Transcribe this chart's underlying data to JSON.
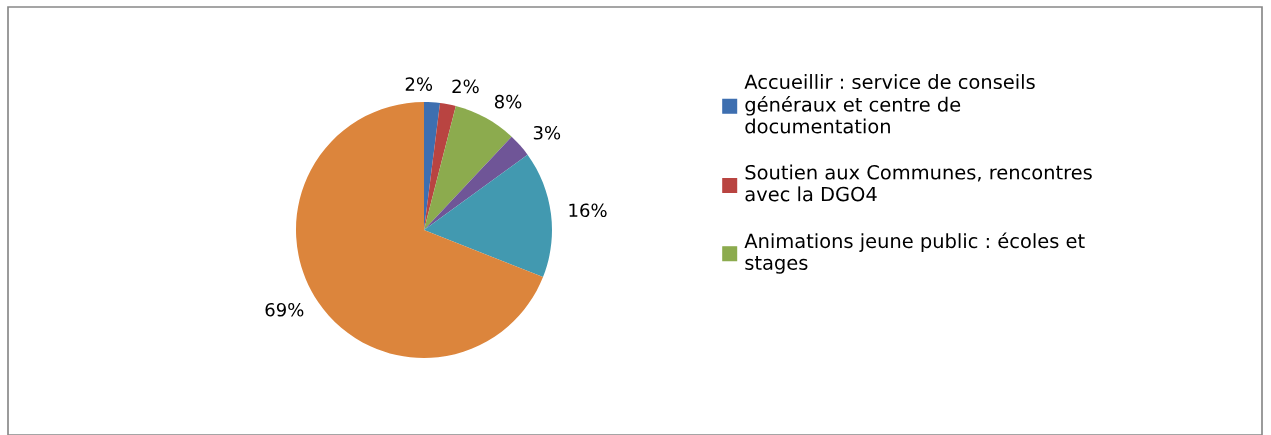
{
  "chart_data": {
    "type": "pie",
    "categories": [
      "Accueillir : service de conseils généraux et centre de documentation",
      "Soutien aux Communes, rencontres avec la DGO4",
      "Animations jeune public : écoles et stages",
      null,
      null,
      null
    ],
    "values": [
      2,
      2,
      8,
      3,
      16,
      69
    ],
    "value_labels": [
      "2%",
      "2%",
      "8%",
      "3%",
      "16%",
      "69%"
    ],
    "colors": [
      "#3e6fb0",
      "#b94441",
      "#8cab4e",
      "#6f5597",
      "#4299b0",
      "#dc853c"
    ],
    "legend": "right"
  }
}
